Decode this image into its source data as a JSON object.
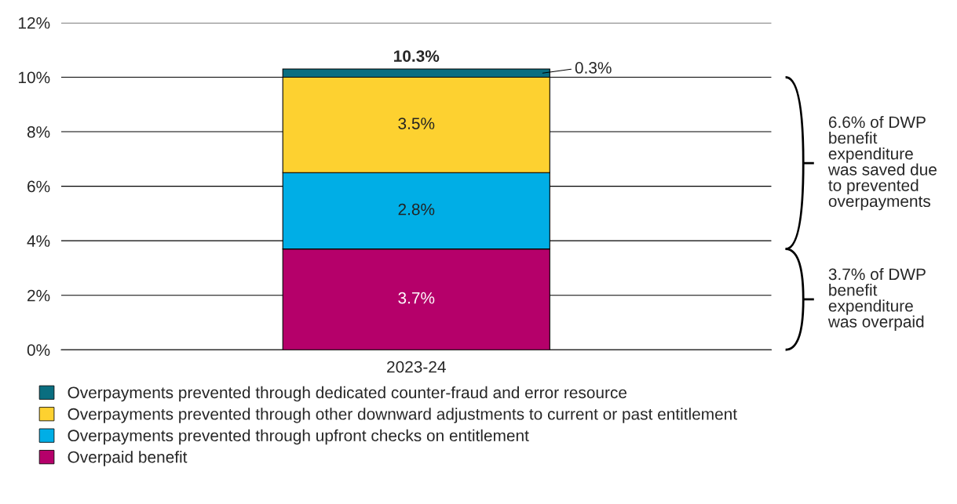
{
  "chart_data": {
    "type": "bar",
    "stacked": true,
    "categories": [
      "2023-24"
    ],
    "series": [
      {
        "name": "Overpaid benefit",
        "color": "#b5006a",
        "values": [
          3.7
        ],
        "value_labels": [
          "3.7%"
        ]
      },
      {
        "name": "Overpayments prevented through upfront checks on entitlement",
        "color": "#00aee6",
        "values": [
          2.8
        ],
        "value_labels": [
          "2.8%"
        ]
      },
      {
        "name": "Overpayments prevented through other downward adjustments to current or past entitlement",
        "color": "#fdd130",
        "values": [
          3.5
        ],
        "value_labels": [
          "3.5%"
        ]
      },
      {
        "name": "Overpayments prevented through dedicated counter-fraud and error resource",
        "color": "#0a6e80",
        "values": [
          0.3
        ],
        "value_labels": [
          "0.3%"
        ]
      }
    ],
    "totals": [
      "10.3%"
    ],
    "ylim": [
      0,
      12
    ],
    "yticks": [
      {
        "value": 0,
        "label": "0%"
      },
      {
        "value": 2,
        "label": "2%"
      },
      {
        "value": 4,
        "label": "4%"
      },
      {
        "value": 6,
        "label": "6%"
      },
      {
        "value": 8,
        "label": "8%"
      },
      {
        "value": 10,
        "label": "10%"
      },
      {
        "value": 12,
        "label": "12%"
      }
    ],
    "grid": "y",
    "legend": "bottom",
    "annotations": [
      "6.6% of DWP\nbenefit\nexpenditure\nwas saved due\nto prevented\noverpayments",
      "3.7% of DWP\nbenefit\nexpenditure\nwas overpaid"
    ]
  }
}
